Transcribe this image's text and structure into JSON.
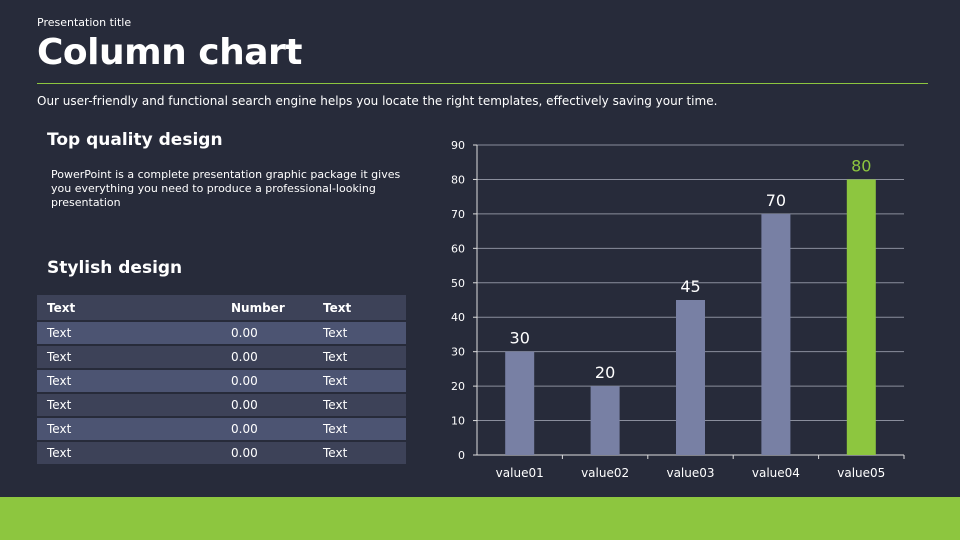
{
  "header": {
    "pretitle": "Presentation title",
    "title": "Column chart",
    "subtitle": "Our user-friendly and functional search engine helps you locate the right templates, effectively saving your time."
  },
  "left": {
    "heading1": "Top quality design",
    "paragraph": "PowerPoint is a complete presentation graphic package it gives you everything you need to produce a professional-looking presentation",
    "heading2": "Stylish design"
  },
  "table": {
    "headers": [
      "Text",
      "Number",
      "Text"
    ],
    "rows": [
      [
        "Text",
        "0.00",
        "Text"
      ],
      [
        "Text",
        "0.00",
        "Text"
      ],
      [
        "Text",
        "0.00",
        "Text"
      ],
      [
        "Text",
        "0.00",
        "Text"
      ],
      [
        "Text",
        "0.00",
        "Text"
      ],
      [
        "Text",
        "0.00",
        "Text"
      ]
    ]
  },
  "colors": {
    "accent": "#8dc63f",
    "bar": "#7880a4",
    "background": "#272b3a"
  },
  "chart_data": {
    "type": "bar",
    "categories": [
      "value01",
      "value02",
      "value03",
      "value04",
      "value05"
    ],
    "values": [
      30,
      20,
      45,
      70,
      80
    ],
    "highlight_index": 4,
    "ylim": [
      0,
      90
    ],
    "yticks": [
      0,
      10,
      20,
      30,
      40,
      50,
      60,
      70,
      80,
      90
    ],
    "grid": true,
    "title": "",
    "xlabel": "",
    "ylabel": ""
  }
}
